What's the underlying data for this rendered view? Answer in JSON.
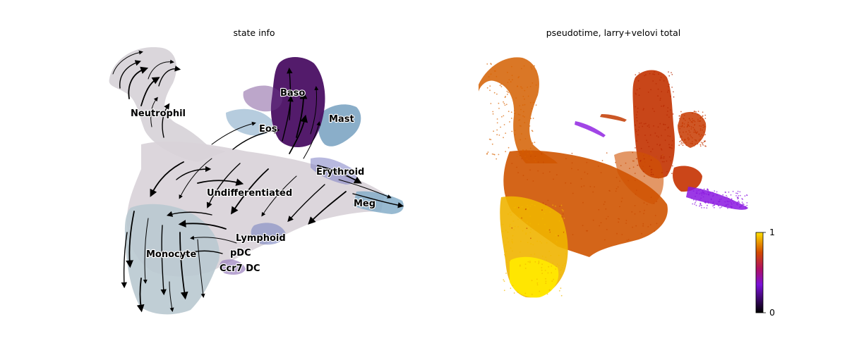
{
  "chart_data": [
    {
      "type": "scatter",
      "subtype": "embedding-with-velocity-streamlines",
      "title": "state info",
      "grid": false,
      "axes_visible": false,
      "categories": [
        {
          "name": "Baso",
          "color": "#4a0f63"
        },
        {
          "name": "Neutrophil",
          "color": "#d4cfd5"
        },
        {
          "name": "Mast",
          "color": "#7aa3c2"
        },
        {
          "name": "Eos",
          "color": "#8d79b8"
        },
        {
          "name": "Erythroid",
          "color": "#7e80c4"
        },
        {
          "name": "Undifferentiated",
          "color": "#d9d2d9"
        },
        {
          "name": "Meg",
          "color": "#86aec9"
        },
        {
          "name": "Lymphoid",
          "color": "#7c86c2"
        },
        {
          "name": "pDC",
          "color": "#a8a6cc"
        },
        {
          "name": "Monocyte",
          "color": "#b8c8cf"
        },
        {
          "name": "Ccr7 DC",
          "color": "#9a7fbe"
        }
      ]
    },
    {
      "type": "scatter",
      "subtype": "embedding-continuous-color",
      "title": "pseudotime, larry+velovi total",
      "grid": false,
      "axes_visible": false,
      "colorbar": {
        "min": 0,
        "max": 1,
        "ticks": [
          "0",
          "1"
        ],
        "colormap": "gnuplot"
      }
    }
  ],
  "colors": {
    "baso": "#4a0f63",
    "neutrophil": "#d4cfd5",
    "monocyte": "#b8c8cf",
    "mast": "#7aa3c2",
    "stream": "#000000",
    "pseudotime_low": "#1a0033",
    "pseudotime_mid": "#8a16e0",
    "pseudotime_high": "#c23a00",
    "pseudotime_top": "#ffdd00"
  }
}
